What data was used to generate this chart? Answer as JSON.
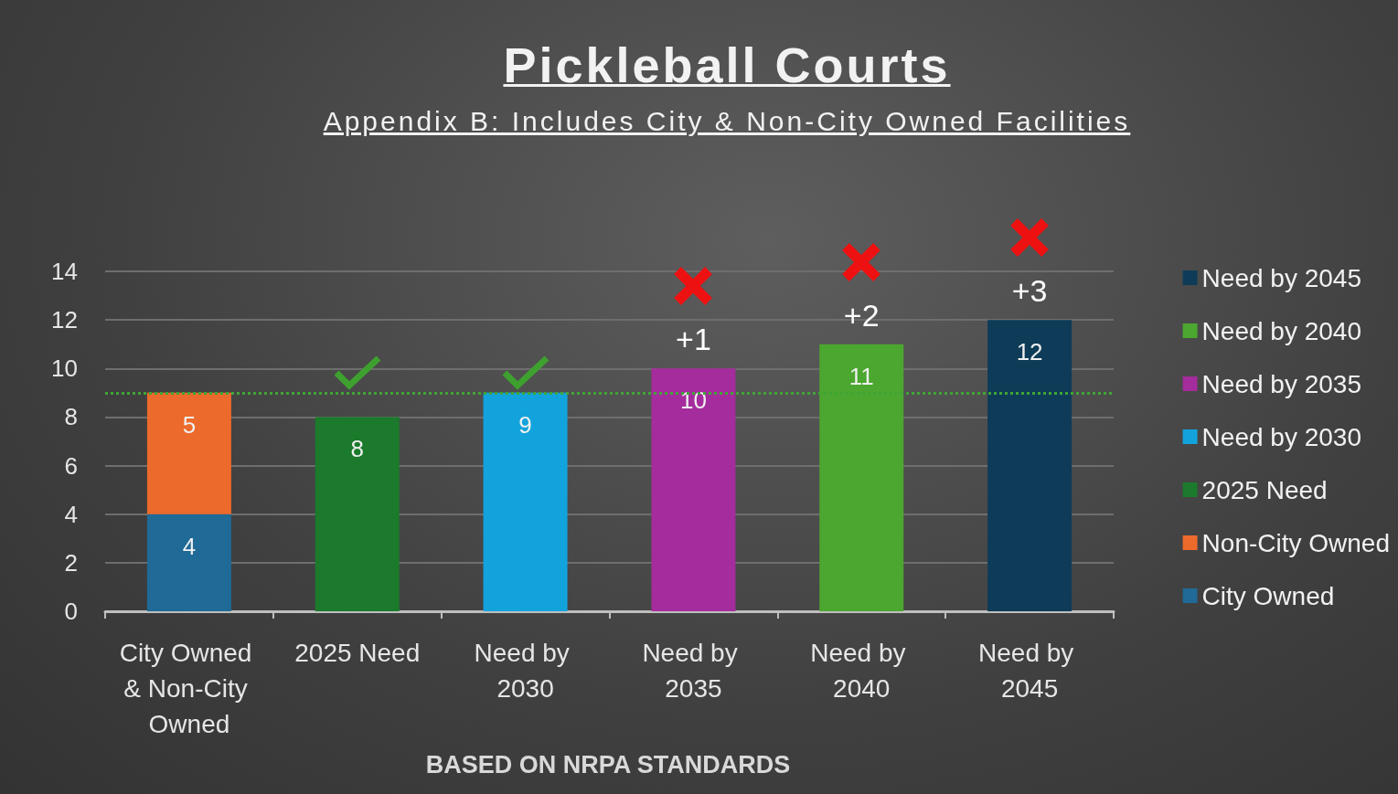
{
  "chart_data": {
    "type": "bar",
    "title": "Pickleball Courts",
    "subtitle": "Appendix B: Includes City & Non-City Owned Facilities",
    "categories": [
      "City Owned & Non-City Owned",
      "2025 Need",
      "Need by 2030",
      "Need by 2035",
      "Need by 2040",
      "Need by 2045"
    ],
    "series": [
      {
        "name": "City Owned",
        "color": "#1f6a96",
        "values": [
          4,
          null,
          null,
          null,
          null,
          null
        ]
      },
      {
        "name": "Non-City Owned",
        "color": "#ec6a2c",
        "values": [
          5,
          null,
          null,
          null,
          null,
          null
        ]
      },
      {
        "name": "2025 Need",
        "color": "#1b7a2b",
        "values": [
          null,
          8,
          null,
          null,
          null,
          null
        ]
      },
      {
        "name": "Need by 2030",
        "color": "#13a3dc",
        "values": [
          null,
          null,
          9,
          null,
          null,
          null
        ]
      },
      {
        "name": "Need by 2035",
        "color": "#a42c9c",
        "values": [
          null,
          null,
          null,
          10,
          null,
          null
        ]
      },
      {
        "name": "Need by 2040",
        "color": "#4ba72f",
        "values": [
          null,
          null,
          null,
          null,
          11,
          null
        ]
      },
      {
        "name": "Need by 2045",
        "color": "#0e3c58",
        "values": [
          null,
          null,
          null,
          null,
          null,
          12
        ]
      }
    ],
    "stacked": true,
    "ylim": [
      0,
      14
    ],
    "yticks": [
      0,
      2,
      4,
      6,
      8,
      10,
      12,
      14
    ],
    "grid": "y",
    "legend": "right",
    "data_labels": true,
    "ref_lines": [
      {
        "axis": "y",
        "value": 9,
        "color": "#3fa535",
        "line_style": "dotted"
      }
    ],
    "annotations": [
      {
        "text": "+1",
        "x": "Need by 2035",
        "y": 10
      },
      {
        "text": "+2",
        "x": "Need by 2040",
        "y": 11
      },
      {
        "text": "+3",
        "x": "Need by 2045",
        "y": 12
      },
      "BASED ON NRPA STANDARDS"
    ]
  }
}
